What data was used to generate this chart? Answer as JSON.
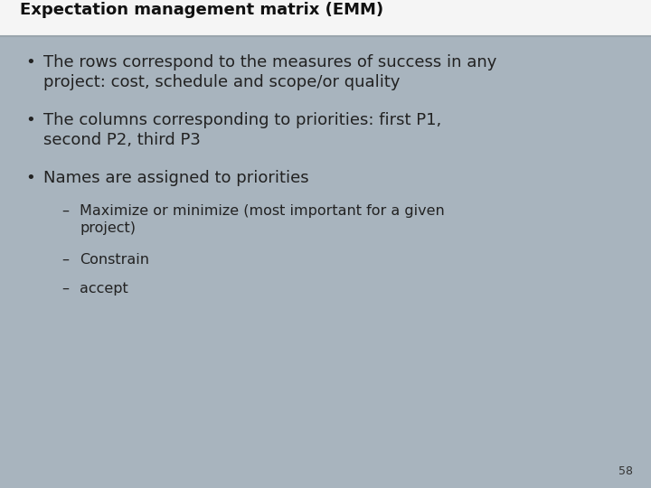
{
  "title": "Expectation management matrix (EMM)",
  "slide_bg": "#a8b4be",
  "title_bar_color": "#f5f5f5",
  "title_fontsize": 13,
  "body_fontsize": 13,
  "sub_fontsize": 11.5,
  "page_number": "58",
  "bullets": [
    {
      "level": 1,
      "text": "The rows correspond to the measures of success in any\nproject: cost, schedule and scope/or quality",
      "has_newline": true
    },
    {
      "level": 1,
      "text": "The columns corresponding to priorities: first P1,\nsecond P2, third P3",
      "has_newline": true
    },
    {
      "level": 1,
      "text": "Names are assigned to priorities",
      "has_newline": false
    },
    {
      "level": 2,
      "text": "Maximize or minimize (most important for a given\nproject)",
      "has_newline": true
    },
    {
      "level": 2,
      "text": "Constrain",
      "has_newline": false
    },
    {
      "level": 2,
      "text": "accept",
      "has_newline": false
    }
  ]
}
